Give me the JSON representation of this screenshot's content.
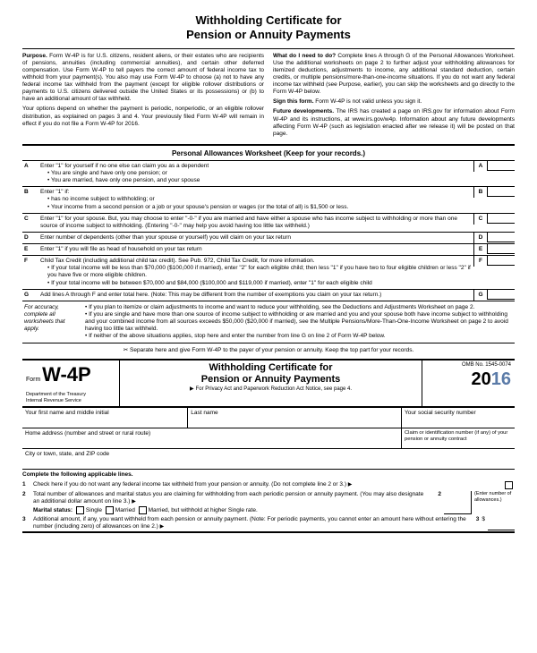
{
  "title": "Withholding Certificate for\nPension or Annuity Payments",
  "intro_left": [
    {
      "b": "Purpose.",
      "t": " Form W-4P is for U.S. citizens, resident aliens, or their estates who are recipients of pensions, annuities (including commercial annuities), and certain other deferred compensation. Use Form W-4P to tell payers the correct amount of federal income tax to withhold from your payment(s). You also may use Form W-4P to choose (a) not to have any federal income tax withheld from the payment (except for eligible rollover distributions or payments to U.S. citizens delivered outside the United States or its possessions) or (b) to have an additional amount of tax withheld."
    },
    {
      "b": "",
      "t": "Your options depend on whether the payment is periodic, nonperiodic, or an eligible rollover distribution, as explained on pages 3 and 4. Your previously filed Form W-4P will remain in effect if you do not file a Form W-4P for 2016."
    }
  ],
  "intro_right": [
    {
      "b": "What do I need to do?",
      "t": " Complete lines A through G of the Personal Allowances Worksheet. Use the additional worksheets on page 2 to further adjust your withholding allowances for itemized deductions, adjustments to income, any additional standard deduction, certain credits, or multiple pensions/more-than-one-income situations. If you do not want any federal income tax withheld (see Purpose, earlier), you can skip the worksheets and go directly to the Form W-4P below."
    },
    {
      "b": "Sign this form.",
      "t": " Form W-4P is not valid unless you sign it."
    },
    {
      "b": "Future developments.",
      "t": " The IRS has created a page on IRS.gov for information about Form W-4P and its instructions, at www.irs.gov/w4p. Information about any future developments affecting Form W-4P (such as legislation enacted after we release it) will be posted on that page."
    }
  ],
  "ws_header": "Personal Allowances Worksheet (Keep for your records.)",
  "rows": {
    "A": {
      "txt": "Enter \"1\" for yourself if no one else can claim you as a dependent",
      "extra": [
        "You are single and have only one pension; or",
        "You are married, have only one pension, and your spouse"
      ]
    },
    "B": {
      "txt": "Enter \"1\" if:",
      "extra": [
        "has no income subject to withholding; or",
        "Your income from a second pension or a job or your spouse's pension or wages (or the total of all) is $1,500 or less."
      ]
    },
    "C": {
      "txt": "Enter \"1\" for your spouse. But, you may choose to enter \"-0-\" if you are married and have either a spouse who has income subject to withholding or more than one source of income subject to withholding. (Entering \"-0-\" may help you avoid having too little tax withheld.)"
    },
    "D": {
      "txt": "Enter number of dependents (other than your spouse or yourself) you will claim on your tax return"
    },
    "E": {
      "txt": "Enter \"1\" if you will file as head of household on your tax return"
    },
    "F": {
      "txt": "Child Tax Credit (including additional child tax credit). See Pub. 972, Child Tax Credit, for more information.",
      "extra": [
        "If your total income will be less than $70,000 ($100,000 if married), enter \"2\" for each eligible child; then less \"1\" if you have two to four eligible children or less \"2\" if you have five or more eligible children.",
        "If your total income will be between $70,000 and $84,000 ($100,000 and $119,000 if married), enter \"1\" for each eligible child"
      ]
    },
    "G": {
      "txt": "Add lines A through F and enter total here. (Note: This may be different from the number of exemptions you claim on your tax return.)"
    }
  },
  "note_left": "For accuracy, complete all worksheets that apply.",
  "note_bullets": [
    "If you plan to itemize or claim adjustments to income and want to reduce your withholding, see the Deductions and Adjustments Worksheet on page 2.",
    "If you are single and have more than one source of income subject to withholding or are married and you and your spouse both have income subject to withholding and your combined income from all sources exceeds $50,000 ($20,000 if married), see the Multiple Pensions/More-Than-One-Income Worksheet on page 2 to avoid having too little tax withheld.",
    "If neither of the above situations applies, stop here and enter the number from line G on line 2 of Form W-4P below."
  ],
  "separator": "Separate here and give Form W-4P to the payer of your pension or annuity. Keep the top part for your records.",
  "form": {
    "pre": "Form",
    "no": "W-4P",
    "dept": "Department of the Treasury\nInternal Revenue Service",
    "title": "Withholding Certificate for\nPension or Annuity Payments",
    "sub": "For Privacy Act and Paperwork Reduction Act Notice, see page 4.",
    "omb": "OMB No. 1545-0074",
    "year_a": "20",
    "year_b": "16",
    "f1": "Your first name and middle initial",
    "f2": "Last name",
    "f3": "Your social security number",
    "f4": "Home address (number and street or rural route)",
    "f5": "Claim or identification number (if any) of your pension or annuity contract",
    "f6": "City or town, state, and ZIP code"
  },
  "lines": {
    "hdr": "Complete the following applicable lines.",
    "l1": "Check here if you do not want any federal income tax withheld from your pension or annuity. (Do not complete line 2 or 3.)",
    "l2": "Total number of allowances and marital status you are claiming for withholding from each periodic pension or annuity payment. (You may also designate an additional dollar amount on line 3.)",
    "ms": "Marital status:",
    "ms1": "Single",
    "ms2": "Married",
    "ms3": "Married, but withhold at higher Single rate.",
    "side": "(Enter number of allowances.)",
    "l3": "Additional amount, if any, you want withheld from each pension or annuity payment. (Note: For periodic payments, you cannot enter an amount here without entering the number (including zero) of allowances on line 2.)"
  }
}
